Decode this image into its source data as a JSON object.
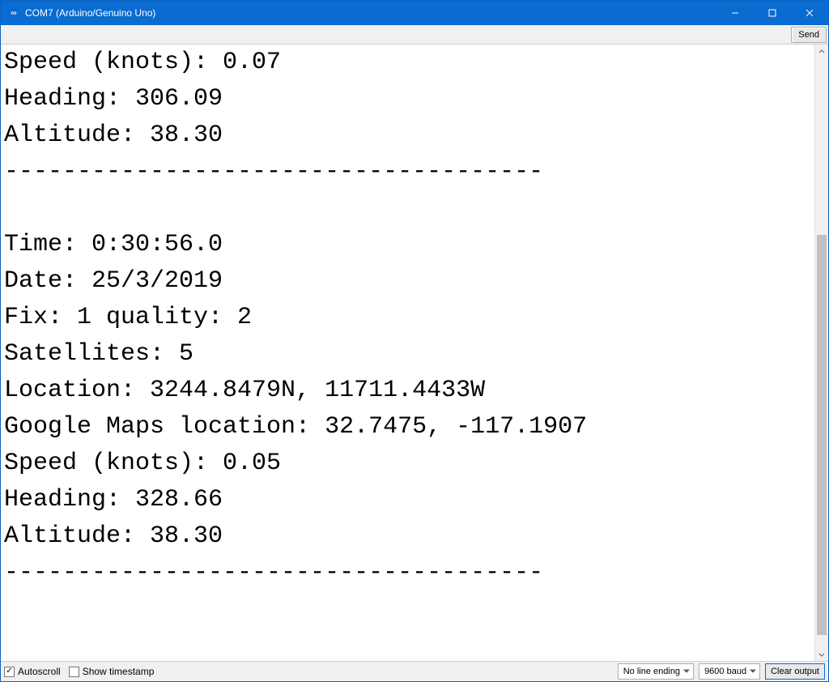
{
  "titlebar": {
    "app_icon_label": "∞",
    "title": "COM7 (Arduino/Genuino Uno)"
  },
  "toolbar": {
    "send_label": "Send"
  },
  "output_lines": [
    "Speed (knots): 0.07",
    "Heading: 306.09",
    "Altitude: 38.30",
    "-------------------------------------",
    "",
    "Time: 0:30:56.0",
    "Date: 25/3/2019",
    "Fix: 1 quality: 2",
    "Satellites: 5",
    "Location: 3244.8479N, 11711.4433W",
    "Google Maps location: 32.7475, -117.1907",
    "Speed (knots): 0.05",
    "Heading: 328.66",
    "Altitude: 38.30",
    "-------------------------------------",
    ""
  ],
  "scrollbar": {
    "thumb_top_pct": 30,
    "thumb_height_pct": 68
  },
  "bottombar": {
    "autoscroll_label": "Autoscroll",
    "autoscroll_checked": true,
    "show_timestamp_label": "Show timestamp",
    "show_timestamp_checked": false,
    "line_ending": "No line ending",
    "baud": "9600 baud",
    "clear_label": "Clear output"
  },
  "colors": {
    "titlebar_bg": "#0a6bd1",
    "titlebar_fg": "#ffffff",
    "panel_bg": "#f0f0f0",
    "border": "#d0d0d0",
    "text": "#000000"
  }
}
